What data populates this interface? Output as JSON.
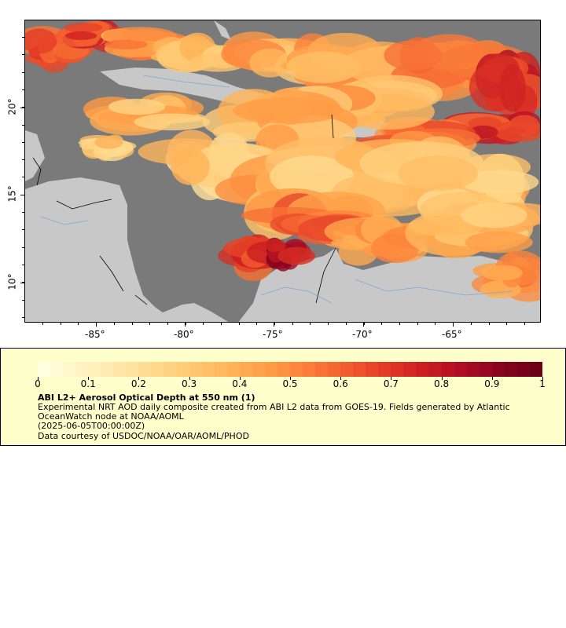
{
  "map": {
    "lon_ticks": [
      "-85°",
      "-80°",
      "-75°",
      "-70°",
      "-65°"
    ],
    "lat_ticks": [
      "20°",
      "15°",
      "10°"
    ],
    "colors": {
      "ocean_nodata": "#7a7a7a",
      "land": "#c8c8c8",
      "rivers": "#7fa7d8",
      "borders": "#000000"
    }
  },
  "legend": {
    "title": "ABI L2+ Aerosol Optical Depth at 550 nm (1)",
    "description": "Experimental NRT AOD daily composite created from ABI L2 data from GOES-19. Fields generated by Atlantic OceanWatch node at NOAA/AOML",
    "time": "(2025-06-05T00:00:00Z)",
    "credit": "Data courtesy of USDOC/NOAA/OAR/AOML/PHOD",
    "ticks": [
      "0",
      "0.1",
      "0.2",
      "0.3",
      "0.4",
      "0.5",
      "0.6",
      "0.7",
      "0.8",
      "0.9",
      "1"
    ],
    "palette": [
      "#ffffe0",
      "#fff3c4",
      "#ffe7a8",
      "#ffd88a",
      "#ffc66f",
      "#ffb257",
      "#ff9a45",
      "#fb7d39",
      "#f25d2f",
      "#e33b26",
      "#cc1f22",
      "#b00d24",
      "#8a0420",
      "#6d0018"
    ]
  }
}
